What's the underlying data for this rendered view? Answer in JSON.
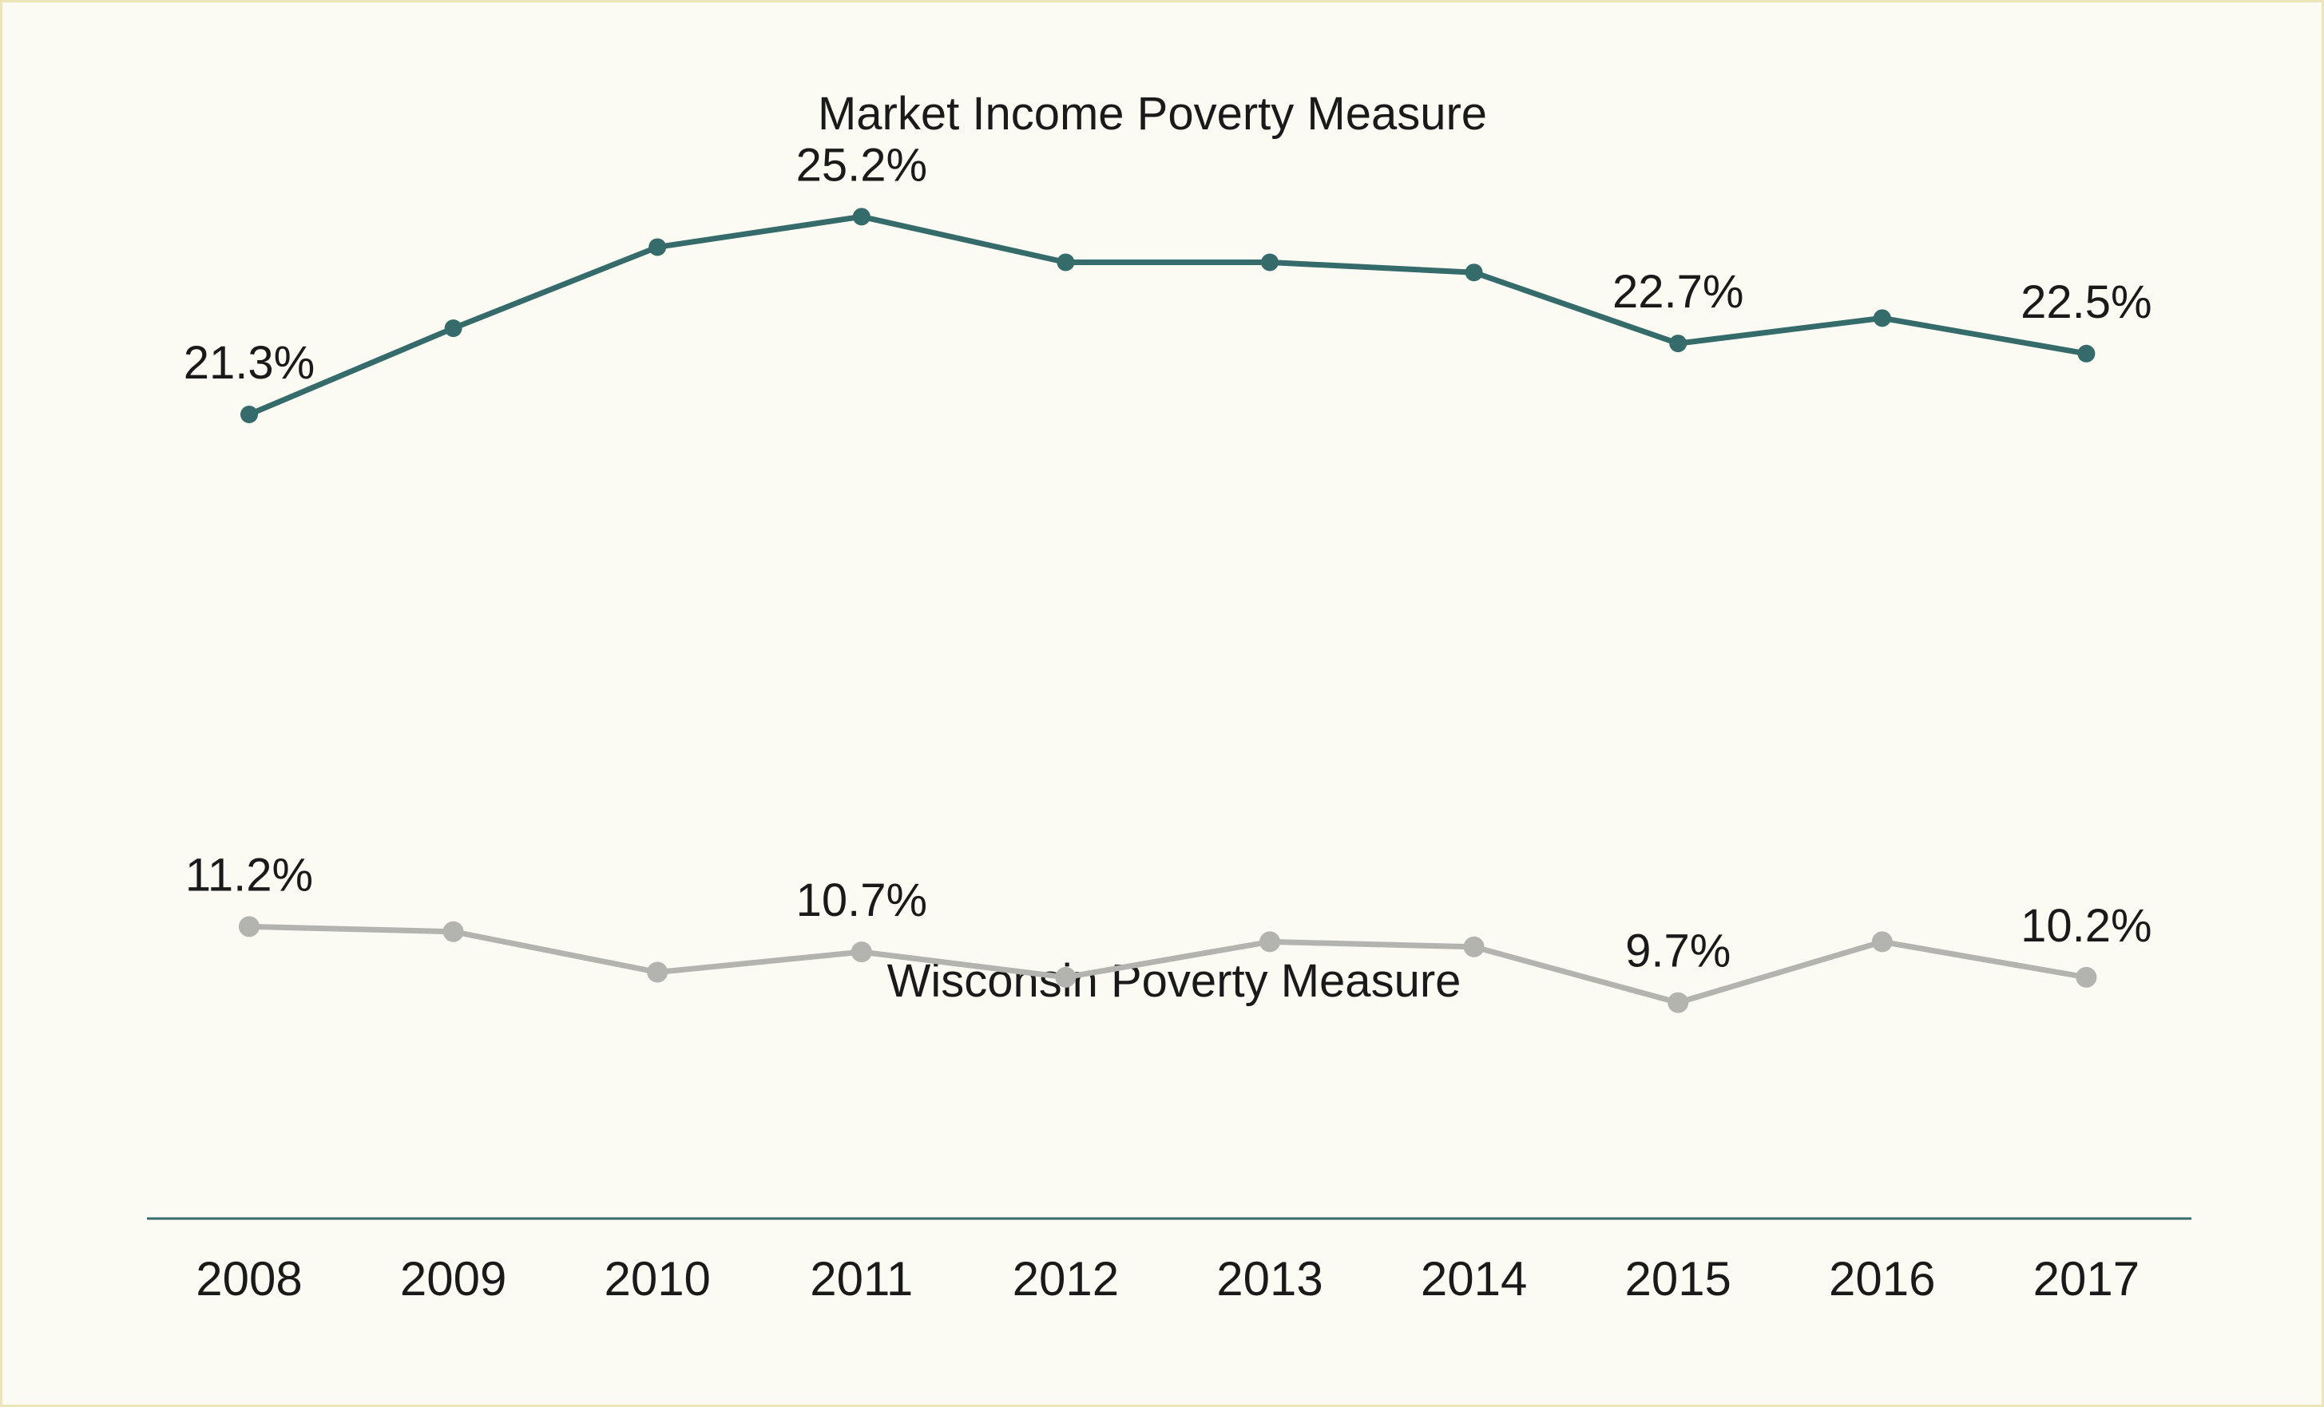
{
  "chart_data": {
    "type": "line",
    "title": "",
    "xlabel": "",
    "ylabel": "",
    "categories": [
      "2008",
      "2009",
      "2010",
      "2011",
      "2012",
      "2013",
      "2014",
      "2015",
      "2016",
      "2017"
    ],
    "ylim": [
      0,
      30
    ],
    "grid": false,
    "legend": "none",
    "series": [
      {
        "name": "Market Income Poverty Measure",
        "color": "#356b6b",
        "values": [
          21.3,
          23.0,
          24.6,
          25.2,
          24.3,
          24.3,
          24.1,
          22.7,
          23.2,
          22.5
        ],
        "data_labels": [
          "21.3%",
          null,
          null,
          "25.2%",
          null,
          null,
          null,
          "22.7%",
          null,
          "22.5%"
        ]
      },
      {
        "name": "Wisconsin Poverty Measure",
        "color": "#b3b3b0",
        "values": [
          11.2,
          11.1,
          10.3,
          10.7,
          10.2,
          10.9,
          10.8,
          9.7,
          10.9,
          10.2
        ],
        "data_labels": [
          "11.2%",
          null,
          null,
          "10.7%",
          null,
          null,
          null,
          "9.7%",
          null,
          "10.2%"
        ]
      }
    ]
  }
}
